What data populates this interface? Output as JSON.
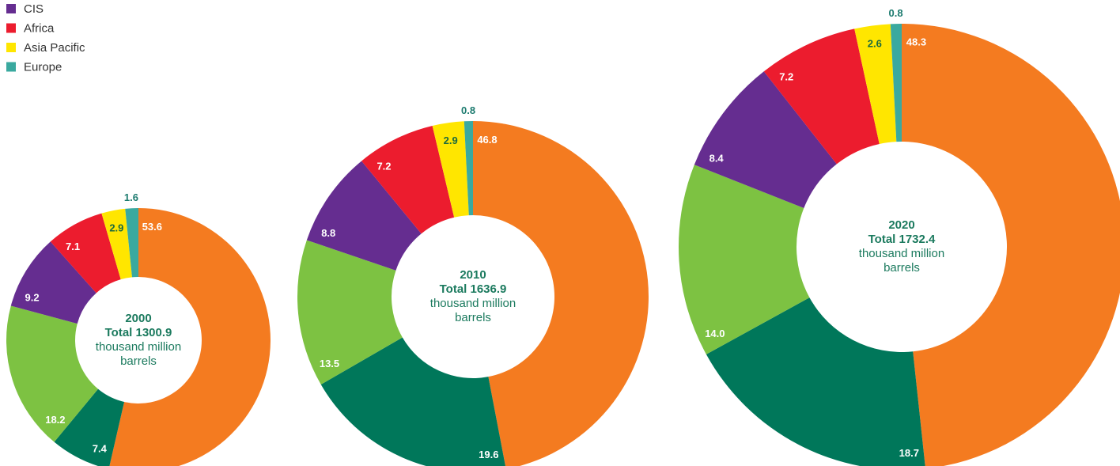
{
  "chart_data": [
    {
      "type": "donut",
      "center_title": "2000",
      "center_total": "Total 1300.9",
      "center_unit": "thousand million barrels",
      "categories": [
        null,
        null,
        null,
        "CIS",
        "Africa",
        "Asia Pacific",
        "Europe"
      ],
      "colors": [
        "#f47b20",
        "#00775a",
        "#7dc242",
        "#652d90",
        "#ec1c2e",
        "#ffe600",
        "#3aa99f"
      ],
      "values": [
        53.6,
        7.4,
        18.2,
        9.2,
        7.1,
        2.9,
        1.6
      ],
      "legend": true
    },
    {
      "type": "donut",
      "center_title": "2010",
      "center_total": "Total 1636.9",
      "center_unit": "thousand million barrels",
      "categories": [
        null,
        null,
        null,
        "CIS",
        "Africa",
        "Asia Pacific",
        "Europe"
      ],
      "colors": [
        "#f47b20",
        "#00775a",
        "#7dc242",
        "#652d90",
        "#ec1c2e",
        "#ffe600",
        "#3aa99f"
      ],
      "values": [
        46.8,
        19.6,
        13.5,
        8.8,
        7.2,
        2.9,
        0.8
      ],
      "legend": false
    },
    {
      "type": "donut",
      "center_title": "2020",
      "center_total": "Total 1732.4",
      "center_unit": "thousand million barrels",
      "categories": [
        null,
        null,
        null,
        "CIS",
        "Africa",
        "Asia Pacific",
        "Europe"
      ],
      "colors": [
        "#f47b20",
        "#00775a",
        "#7dc242",
        "#652d90",
        "#ec1c2e",
        "#ffe600",
        "#3aa99f"
      ],
      "values": [
        48.3,
        18.7,
        14,
        8.4,
        7.2,
        2.6,
        0.8
      ],
      "value_labels": [
        "48.3",
        "18.7",
        "14.0",
        "8.4",
        "7.2",
        "2.6",
        "0.8"
      ],
      "legend": false
    }
  ]
}
